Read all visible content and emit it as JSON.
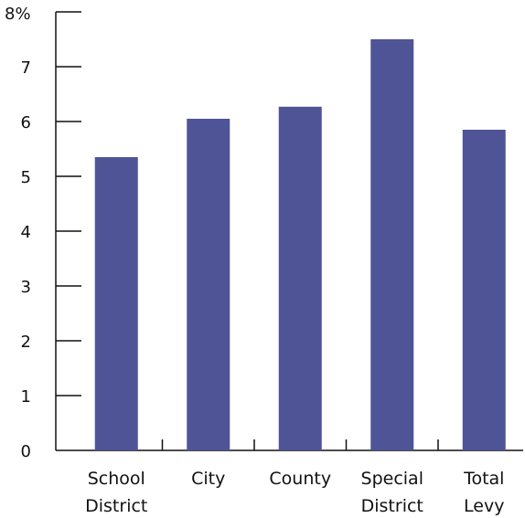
{
  "chart_data": {
    "type": "bar",
    "categories": [
      [
        "School",
        "District"
      ],
      [
        "City"
      ],
      [
        "County"
      ],
      [
        "Special",
        "District"
      ],
      [
        "Total",
        "Levy"
      ]
    ],
    "values": [
      5.35,
      6.05,
      6.27,
      7.5,
      5.85
    ],
    "ylim": [
      0,
      8
    ],
    "y_ticks": [
      "0",
      "1",
      "2",
      "3",
      "4",
      "5",
      "6",
      "7",
      "8%"
    ],
    "grid": false,
    "bar_color": "#4f5496"
  }
}
